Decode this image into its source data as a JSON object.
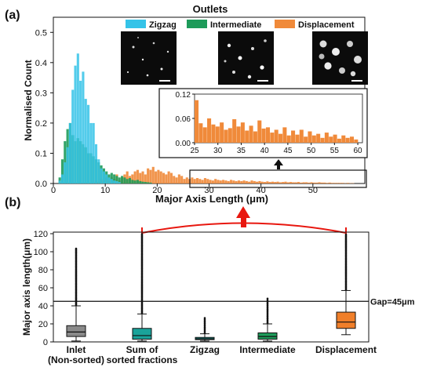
{
  "panel_a_label": "(a)",
  "panel_b_label": "(b)",
  "chart_data": [
    {
      "type": "bar",
      "title": "Outlets",
      "xlabel": "Major Axis Length (μm)",
      "ylabel": "Normalised Count",
      "xlim": [
        0,
        60
      ],
      "ylim": [
        0,
        0.55
      ],
      "xticks": [
        "0",
        "10",
        "20",
        "30",
        "40",
        "50"
      ],
      "yticks": [
        "0.0",
        "0.1",
        "0.2",
        "0.3",
        "0.4",
        "0.5"
      ],
      "legend_position": "top",
      "series": [
        {
          "name": "Zigzag",
          "color": "#35c3e8",
          "bin_start": 1,
          "bin_width": 0.5,
          "values": [
            0.01,
            0.03,
            0.07,
            0.12,
            0.2,
            0.31,
            0.39,
            0.43,
            0.34,
            0.37,
            0.28,
            0.26,
            0.2,
            0.2,
            0.13,
            0.08,
            0.05,
            0.04,
            0.03,
            0.02,
            0.015,
            0.01,
            0.008,
            0.005
          ]
        },
        {
          "name": "Intermediate",
          "color": "#1e9b5a",
          "bin_start": 1,
          "bin_width": 0.5,
          "values": [
            0.02,
            0.08,
            0.14,
            0.18,
            0.2,
            0.16,
            0.14,
            0.15,
            0.14,
            0.13,
            0.12,
            0.1,
            0.1,
            0.09,
            0.08,
            0.07,
            0.06,
            0.05,
            0.04,
            0.03,
            0.035,
            0.03,
            0.025,
            0.02,
            0.025,
            0.02,
            0.015,
            0.018,
            0.012,
            0.01,
            0.012,
            0.008,
            0.006,
            0.005,
            0.004,
            0.003
          ]
        },
        {
          "name": "Displacement",
          "color": "#f08a3a",
          "bin_start": 8,
          "bin_width": 0.5,
          "values": [
            0.01,
            0.005,
            0.015,
            0.01,
            0.02,
            0.01,
            0.02,
            0.015,
            0.03,
            0.01,
            0.02,
            0.03,
            0.04,
            0.025,
            0.03,
            0.04,
            0.045,
            0.035,
            0.04,
            0.03,
            0.05,
            0.045,
            0.055,
            0.04,
            0.045,
            0.04,
            0.035,
            0.03,
            0.04,
            0.035,
            0.025,
            0.02,
            0.03,
            0.025,
            0.015,
            0.02,
            0.015,
            0.02,
            0.015,
            0.018,
            0.015,
            0.012,
            0.018,
            0.015,
            0.012,
            0.01,
            0.015,
            0.012,
            0.01,
            0.012,
            0.01,
            0.008,
            0.012,
            0.01,
            0.008,
            0.01,
            0.008,
            0.01,
            0.008,
            0.006,
            0.01,
            0.008,
            0.006,
            0.008,
            0.006,
            0.005,
            0.007,
            0.005,
            0.006,
            0.005,
            0.006,
            0.004,
            0.005,
            0.006,
            0.004,
            0.005,
            0.004,
            0.004,
            0.005,
            0.003,
            0.004,
            0.004,
            0.003,
            0.004,
            0.003,
            0.003,
            0.004,
            0.003,
            0.003,
            0.002,
            0.003,
            0.002,
            0.002,
            0.002,
            0.002,
            0.002,
            0.001,
            0.002,
            0.001,
            0.001
          ]
        }
      ],
      "legend": [
        "Zigzag",
        "Intermediate",
        "Displacement"
      ]
    },
    {
      "type": "bar",
      "subtype": "inset",
      "color": "#f08a3a",
      "xlim": [
        25,
        61
      ],
      "ylim": [
        0,
        0.12
      ],
      "xticks": [
        "25",
        "30",
        "35",
        "40",
        "45",
        "50",
        "55",
        "60"
      ],
      "yticks": [
        "0.00",
        "0.06",
        "0.12"
      ],
      "bin_start": 25,
      "bin_width": 0.9,
      "values": [
        0.105,
        0.048,
        0.038,
        0.06,
        0.045,
        0.04,
        0.05,
        0.032,
        0.036,
        0.058,
        0.04,
        0.05,
        0.03,
        0.042,
        0.028,
        0.055,
        0.035,
        0.038,
        0.025,
        0.032,
        0.022,
        0.038,
        0.018,
        0.03,
        0.02,
        0.032,
        0.015,
        0.028,
        0.018,
        0.022,
        0.012,
        0.025,
        0.015,
        0.02,
        0.01,
        0.018,
        0.012,
        0.015,
        0.008
      ]
    },
    {
      "type": "boxplot",
      "xlabel": "",
      "ylabel": "Major axis length(μm)",
      "ylim": [
        0,
        120
      ],
      "yticks": [
        "0",
        "20",
        "40",
        "60",
        "80",
        "100",
        "120"
      ],
      "gap_line": {
        "value": 45,
        "label": "Gap=45μm"
      },
      "categories": [
        "Inlet\n(Non-sorted)",
        "Sum of\nsorted fractions",
        "Zigzag",
        "Intermediate",
        "Displacement"
      ],
      "category_lines": [
        [
          "Inlet",
          "(Non-sorted)"
        ],
        [
          "Sum of",
          "sorted fractions"
        ],
        [
          "Zigzag"
        ],
        [
          "Intermediate"
        ],
        [
          "Displacement"
        ]
      ],
      "boxes": [
        {
          "name": "Inlet",
          "color": "#8a8a8a",
          "whisker_low": 1,
          "q1": 6,
          "median": 11,
          "q3": 18,
          "whisker_high": 40,
          "outlier_max": 104
        },
        {
          "name": "Sum of sorted fractions",
          "color": "#1aa39a",
          "whisker_low": 1,
          "q1": 3,
          "median": 7,
          "q3": 15,
          "whisker_high": 31,
          "outlier_max": 120
        },
        {
          "name": "Zigzag",
          "color": "#1aa39a",
          "whisker_low": 1,
          "q1": 2.5,
          "median": 3.5,
          "q3": 5,
          "whisker_high": 9,
          "outlier_max": 27
        },
        {
          "name": "Intermediate",
          "color": "#1e9b5a",
          "whisker_low": 1,
          "q1": 3,
          "median": 6,
          "q3": 10,
          "whisker_high": 20,
          "outlier_max": 48
        },
        {
          "name": "Displacement",
          "color": "#f07f2a",
          "whisker_low": 8,
          "q1": 15,
          "median": 22,
          "q3": 33,
          "whisker_high": 57,
          "outlier_max": 120
        }
      ]
    }
  ]
}
